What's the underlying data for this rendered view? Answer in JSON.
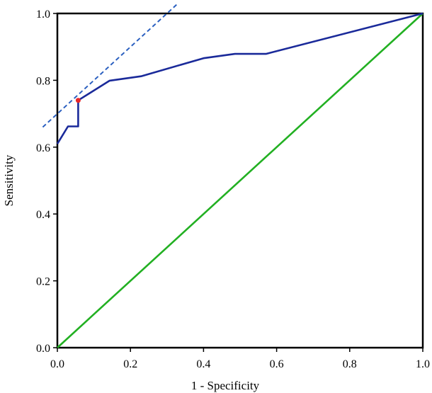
{
  "chart_data": {
    "type": "line",
    "title": "",
    "xlabel": "1 - Specificity",
    "ylabel": "Sensitivity",
    "xlim": [
      0,
      1
    ],
    "ylim": [
      0,
      1
    ],
    "x_ticks": [
      "0.0",
      "0.2",
      "0.4",
      "0.6",
      "0.8",
      "1.0"
    ],
    "y_ticks": [
      "0.0",
      "0.2",
      "0.4",
      "0.6",
      "0.8",
      "1.0"
    ],
    "grid": false,
    "legend": "none",
    "series": [
      {
        "kind": "roc-curve",
        "color": "#1a2a9a",
        "style": "solid",
        "x": [
          0.0,
          0.0,
          0.029,
          0.057,
          0.057,
          0.143,
          0.229,
          0.4,
          0.486,
          0.571,
          1.0
        ],
        "y": [
          0.61,
          0.61,
          0.662,
          0.662,
          0.74,
          0.799,
          0.812,
          0.866,
          0.879,
          0.879,
          1.0
        ]
      },
      {
        "kind": "reference-diagonal",
        "color": "#22b022",
        "style": "solid",
        "x": [
          0.0,
          1.0
        ],
        "y": [
          0.0,
          1.0
        ]
      },
      {
        "kind": "tangent",
        "color": "#2a5fc0",
        "style": "dashed",
        "x": [
          -0.04,
          0.33
        ],
        "y": [
          0.66,
          1.03
        ]
      }
    ],
    "points": [
      {
        "kind": "optimal-cutoff",
        "color": "#e8282a",
        "x": 0.057,
        "y": 0.74
      }
    ]
  }
}
